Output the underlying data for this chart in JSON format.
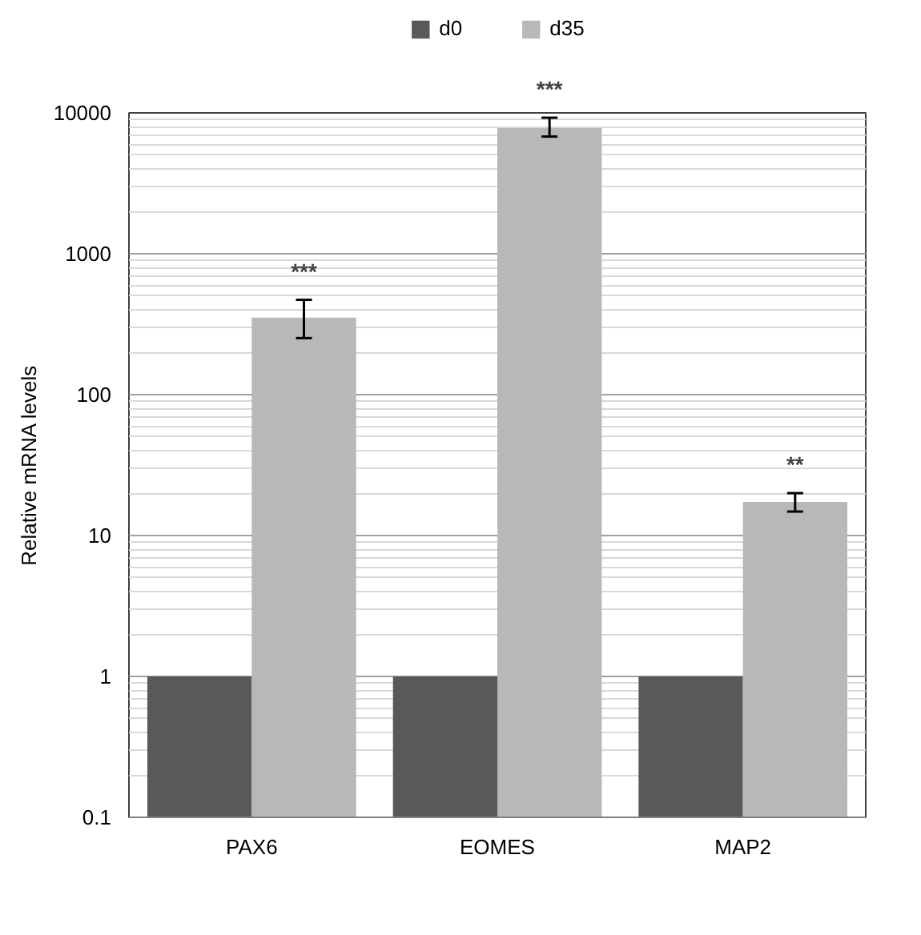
{
  "chart_data": {
    "type": "bar",
    "categories": [
      "PAX6",
      "EOMES",
      "MAP2"
    ],
    "series": [
      {
        "name": "d0",
        "color": "#595959",
        "values": [
          1,
          1,
          1
        ]
      },
      {
        "name": "d35",
        "color": "#b8b8b8",
        "values": [
          352,
          7800,
          17.3
        ],
        "errors": [
          [
            252,
            471
          ],
          [
            6790,
            9240
          ],
          [
            14.8,
            20
          ]
        ]
      }
    ],
    "ylabel": "Relative mRNA levels",
    "log": true,
    "ylim": [
      0.1,
      10000
    ],
    "yticks": [
      {
        "value": 0.1,
        "label": "0.1"
      },
      1,
      10,
      100,
      1000,
      10000
    ],
    "grid": "y",
    "legend": "top",
    "annotations": [
      "***",
      "***",
      "**"
    ]
  }
}
